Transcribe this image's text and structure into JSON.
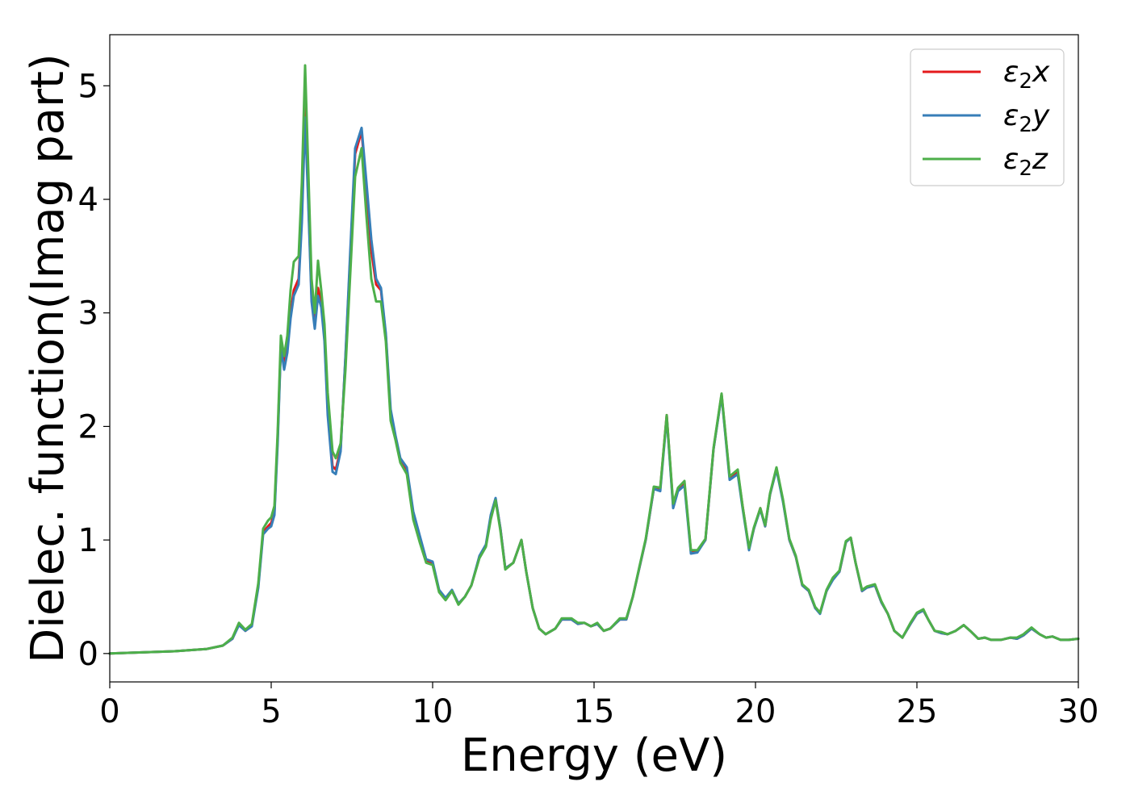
{
  "chart_data": {
    "type": "line",
    "title": "",
    "xlabel": "Energy (eV)",
    "ylabel": "Dielec. function(Imag part)",
    "xlim": [
      0,
      30
    ],
    "ylim": [
      -0.25,
      5.45
    ],
    "xticks": [
      0,
      5,
      10,
      15,
      20,
      25,
      30
    ],
    "yticks": [
      0,
      1,
      2,
      3,
      4,
      5
    ],
    "grid": false,
    "legend_position": "top-right",
    "series": [
      {
        "name": "ε₂x",
        "legend_base": "ε",
        "legend_sub": "2",
        "legend_tail": "x",
        "color": "#e41a1c",
        "x": [
          0,
          1,
          2,
          3,
          3.5,
          3.8,
          4.0,
          4.2,
          4.4,
          4.6,
          4.75,
          4.9,
          5.0,
          5.1,
          5.2,
          5.3,
          5.4,
          5.5,
          5.6,
          5.7,
          5.85,
          5.95,
          6.05,
          6.15,
          6.25,
          6.35,
          6.45,
          6.55,
          6.65,
          6.75,
          6.9,
          7.0,
          7.15,
          7.3,
          7.45,
          7.6,
          7.8,
          7.95,
          8.1,
          8.25,
          8.4,
          8.55,
          8.7,
          8.85,
          9.0,
          9.2,
          9.4,
          9.6,
          9.8,
          10.0,
          10.2,
          10.4,
          10.6,
          10.8,
          11.0,
          11.2,
          11.45,
          11.65,
          11.8,
          11.95,
          12.1,
          12.25,
          12.5,
          12.75,
          12.9,
          13.1,
          13.3,
          13.5,
          13.8,
          14.0,
          14.3,
          14.5,
          14.7,
          14.9,
          15.1,
          15.3,
          15.5,
          15.8,
          16.0,
          16.2,
          16.4,
          16.6,
          16.85,
          17.05,
          17.25,
          17.45,
          17.6,
          17.8,
          18.0,
          18.2,
          18.45,
          18.7,
          18.95,
          19.2,
          19.45,
          19.6,
          19.8,
          19.95,
          20.15,
          20.3,
          20.45,
          20.65,
          20.85,
          21.05,
          21.25,
          21.45,
          21.65,
          21.85,
          22.0,
          22.2,
          22.4,
          22.6,
          22.8,
          22.95,
          23.1,
          23.3,
          23.45,
          23.7,
          23.9,
          24.1,
          24.3,
          24.55,
          24.8,
          25.0,
          25.2,
          25.35,
          25.55,
          25.75,
          25.95,
          26.2,
          26.45,
          26.65,
          26.9,
          27.1,
          27.3,
          27.6,
          27.9,
          28.1,
          28.3,
          28.55,
          28.8,
          29.0,
          29.2,
          29.45,
          29.7,
          30.0
        ],
        "y": [
          0.0,
          0.01,
          0.02,
          0.04,
          0.07,
          0.13,
          0.26,
          0.2,
          0.25,
          0.6,
          1.07,
          1.12,
          1.15,
          1.25,
          1.9,
          2.72,
          2.55,
          2.68,
          3.0,
          3.2,
          3.3,
          3.85,
          4.83,
          4.0,
          3.15,
          2.9,
          3.22,
          3.1,
          2.8,
          2.15,
          1.65,
          1.62,
          1.8,
          2.6,
          3.5,
          4.4,
          4.6,
          4.1,
          3.55,
          3.25,
          3.2,
          2.8,
          2.1,
          1.9,
          1.7,
          1.6,
          1.2,
          1.0,
          0.82,
          0.8,
          0.55,
          0.48,
          0.55,
          0.44,
          0.5,
          0.6,
          0.85,
          0.95,
          1.2,
          1.36,
          1.1,
          0.75,
          0.8,
          1.0,
          0.72,
          0.4,
          0.22,
          0.17,
          0.22,
          0.3,
          0.3,
          0.26,
          0.27,
          0.24,
          0.26,
          0.2,
          0.22,
          0.3,
          0.3,
          0.5,
          0.75,
          1.0,
          1.45,
          1.45,
          2.1,
          1.3,
          1.45,
          1.5,
          0.9,
          0.9,
          1.0,
          1.8,
          2.28,
          1.55,
          1.6,
          1.3,
          0.92,
          1.1,
          1.28,
          1.12,
          1.4,
          1.63,
          1.35,
          1.0,
          0.85,
          0.6,
          0.55,
          0.4,
          0.36,
          0.55,
          0.66,
          0.72,
          0.98,
          1.02,
          0.8,
          0.55,
          0.58,
          0.6,
          0.45,
          0.35,
          0.2,
          0.14,
          0.26,
          0.35,
          0.38,
          0.3,
          0.2,
          0.18,
          0.17,
          0.2,
          0.25,
          0.2,
          0.13,
          0.14,
          0.12,
          0.12,
          0.14,
          0.13,
          0.16,
          0.22,
          0.17,
          0.14,
          0.15,
          0.12,
          0.12,
          0.13
        ]
      },
      {
        "name": "ε₂y",
        "legend_base": "ε",
        "legend_sub": "2",
        "legend_tail": "y",
        "color": "#377eb8",
        "x": [
          0,
          1,
          2,
          3,
          3.5,
          3.8,
          4.0,
          4.2,
          4.4,
          4.6,
          4.75,
          4.9,
          5.0,
          5.1,
          5.2,
          5.3,
          5.4,
          5.5,
          5.6,
          5.7,
          5.85,
          5.95,
          6.05,
          6.15,
          6.25,
          6.35,
          6.45,
          6.55,
          6.65,
          6.75,
          6.9,
          7.0,
          7.15,
          7.3,
          7.45,
          7.6,
          7.8,
          7.95,
          8.1,
          8.25,
          8.4,
          8.55,
          8.7,
          8.85,
          9.0,
          9.2,
          9.4,
          9.6,
          9.8,
          10.0,
          10.2,
          10.4,
          10.6,
          10.8,
          11.0,
          11.2,
          11.45,
          11.65,
          11.8,
          11.95,
          12.1,
          12.25,
          12.5,
          12.75,
          12.9,
          13.1,
          13.3,
          13.5,
          13.8,
          14.0,
          14.3,
          14.5,
          14.7,
          14.9,
          15.1,
          15.3,
          15.5,
          15.8,
          16.0,
          16.2,
          16.4,
          16.6,
          16.85,
          17.05,
          17.25,
          17.45,
          17.6,
          17.8,
          18.0,
          18.2,
          18.45,
          18.7,
          18.95,
          19.2,
          19.45,
          19.6,
          19.8,
          19.95,
          20.15,
          20.3,
          20.45,
          20.65,
          20.85,
          21.05,
          21.25,
          21.45,
          21.65,
          21.85,
          22.0,
          22.2,
          22.4,
          22.6,
          22.8,
          22.95,
          23.1,
          23.3,
          23.45,
          23.7,
          23.9,
          24.1,
          24.3,
          24.55,
          24.8,
          25.0,
          25.2,
          25.35,
          25.55,
          25.75,
          25.95,
          26.2,
          26.45,
          26.65,
          26.9,
          27.1,
          27.3,
          27.6,
          27.9,
          28.1,
          28.3,
          28.55,
          28.8,
          29.0,
          29.2,
          29.45,
          29.7,
          30.0
        ],
        "y": [
          0.0,
          0.01,
          0.02,
          0.04,
          0.07,
          0.13,
          0.25,
          0.2,
          0.24,
          0.58,
          1.05,
          1.1,
          1.12,
          1.22,
          1.85,
          2.7,
          2.5,
          2.65,
          2.95,
          3.15,
          3.25,
          3.8,
          4.72,
          3.95,
          3.1,
          2.86,
          3.15,
          3.05,
          2.75,
          2.1,
          1.6,
          1.58,
          1.78,
          2.62,
          3.55,
          4.45,
          4.63,
          4.15,
          3.65,
          3.3,
          3.22,
          2.82,
          2.15,
          1.92,
          1.72,
          1.64,
          1.25,
          1.04,
          0.83,
          0.81,
          0.56,
          0.49,
          0.56,
          0.44,
          0.5,
          0.6,
          0.86,
          0.96,
          1.22,
          1.37,
          1.1,
          0.75,
          0.8,
          1.0,
          0.72,
          0.4,
          0.22,
          0.17,
          0.22,
          0.3,
          0.3,
          0.26,
          0.27,
          0.24,
          0.26,
          0.2,
          0.22,
          0.3,
          0.3,
          0.5,
          0.75,
          1.0,
          1.45,
          1.43,
          2.08,
          1.28,
          1.43,
          1.48,
          0.88,
          0.89,
          1.0,
          1.8,
          2.27,
          1.53,
          1.58,
          1.28,
          0.91,
          1.1,
          1.27,
          1.12,
          1.4,
          1.62,
          1.34,
          1.0,
          0.85,
          0.6,
          0.55,
          0.4,
          0.35,
          0.55,
          0.65,
          0.72,
          0.98,
          1.02,
          0.8,
          0.55,
          0.58,
          0.6,
          0.45,
          0.35,
          0.2,
          0.14,
          0.26,
          0.35,
          0.38,
          0.3,
          0.2,
          0.18,
          0.17,
          0.2,
          0.25,
          0.2,
          0.13,
          0.14,
          0.12,
          0.12,
          0.14,
          0.13,
          0.16,
          0.22,
          0.17,
          0.14,
          0.15,
          0.12,
          0.12,
          0.13
        ]
      },
      {
        "name": "ε₂z",
        "legend_base": "ε",
        "legend_sub": "2",
        "legend_tail": "z",
        "color": "#4daf4a",
        "x": [
          0,
          1,
          2,
          3,
          3.5,
          3.8,
          4.0,
          4.2,
          4.4,
          4.6,
          4.75,
          4.9,
          5.0,
          5.1,
          5.2,
          5.3,
          5.4,
          5.5,
          5.6,
          5.7,
          5.85,
          5.95,
          6.05,
          6.15,
          6.25,
          6.35,
          6.45,
          6.55,
          6.65,
          6.75,
          6.9,
          7.0,
          7.15,
          7.3,
          7.45,
          7.6,
          7.8,
          7.95,
          8.1,
          8.25,
          8.4,
          8.55,
          8.7,
          8.85,
          9.0,
          9.2,
          9.4,
          9.6,
          9.8,
          10.0,
          10.2,
          10.4,
          10.6,
          10.8,
          11.0,
          11.2,
          11.45,
          11.65,
          11.8,
          11.95,
          12.1,
          12.25,
          12.5,
          12.75,
          12.9,
          13.1,
          13.3,
          13.5,
          13.8,
          14.0,
          14.3,
          14.5,
          14.7,
          14.9,
          15.1,
          15.3,
          15.5,
          15.8,
          16.0,
          16.2,
          16.4,
          16.6,
          16.85,
          17.05,
          17.25,
          17.45,
          17.6,
          17.8,
          18.0,
          18.2,
          18.45,
          18.7,
          18.95,
          19.2,
          19.45,
          19.6,
          19.8,
          19.95,
          20.15,
          20.3,
          20.45,
          20.65,
          20.85,
          21.05,
          21.25,
          21.45,
          21.65,
          21.85,
          22.0,
          22.2,
          22.4,
          22.6,
          22.8,
          22.95,
          23.1,
          23.3,
          23.45,
          23.7,
          23.9,
          24.1,
          24.3,
          24.55,
          24.8,
          25.0,
          25.2,
          25.35,
          25.55,
          25.75,
          25.95,
          26.2,
          26.45,
          26.65,
          26.9,
          27.1,
          27.3,
          27.6,
          27.9,
          28.1,
          28.3,
          28.55,
          28.8,
          29.0,
          29.2,
          29.45,
          29.7,
          30.0
        ],
        "y": [
          0.0,
          0.01,
          0.02,
          0.04,
          0.07,
          0.14,
          0.27,
          0.21,
          0.26,
          0.62,
          1.1,
          1.17,
          1.2,
          1.3,
          1.95,
          2.8,
          2.62,
          2.8,
          3.2,
          3.45,
          3.5,
          4.15,
          5.18,
          4.25,
          3.3,
          3.0,
          3.46,
          3.2,
          2.9,
          2.3,
          1.78,
          1.72,
          1.85,
          2.5,
          3.35,
          4.2,
          4.45,
          3.85,
          3.3,
          3.1,
          3.1,
          2.75,
          2.05,
          1.88,
          1.68,
          1.58,
          1.18,
          0.98,
          0.8,
          0.78,
          0.54,
          0.47,
          0.55,
          0.43,
          0.5,
          0.6,
          0.84,
          0.94,
          1.18,
          1.35,
          1.08,
          0.74,
          0.8,
          1.0,
          0.72,
          0.4,
          0.22,
          0.17,
          0.22,
          0.31,
          0.31,
          0.27,
          0.27,
          0.24,
          0.27,
          0.2,
          0.22,
          0.31,
          0.31,
          0.5,
          0.76,
          1.01,
          1.47,
          1.46,
          2.1,
          1.32,
          1.46,
          1.52,
          0.91,
          0.91,
          1.01,
          1.81,
          2.29,
          1.56,
          1.62,
          1.3,
          0.93,
          1.11,
          1.28,
          1.13,
          1.41,
          1.64,
          1.36,
          1.01,
          0.86,
          0.61,
          0.56,
          0.41,
          0.36,
          0.56,
          0.67,
          0.73,
          0.99,
          1.02,
          0.8,
          0.56,
          0.59,
          0.61,
          0.46,
          0.35,
          0.2,
          0.14,
          0.27,
          0.36,
          0.39,
          0.3,
          0.2,
          0.19,
          0.17,
          0.2,
          0.25,
          0.2,
          0.13,
          0.14,
          0.12,
          0.12,
          0.14,
          0.14,
          0.17,
          0.23,
          0.17,
          0.14,
          0.15,
          0.12,
          0.12,
          0.13
        ]
      }
    ]
  }
}
